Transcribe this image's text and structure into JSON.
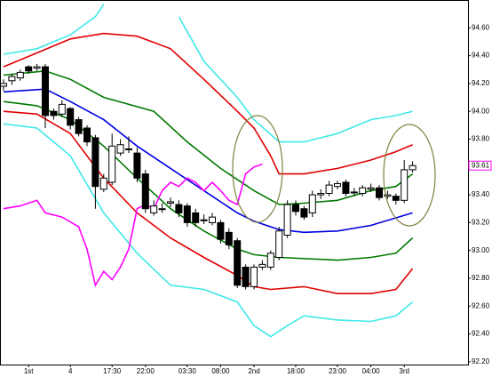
{
  "chart_data": {
    "type": "candlestick",
    "categories": [
      null,
      null,
      null,
      "1st",
      null,
      null,
      null,
      null,
      "4",
      null,
      null,
      null,
      null,
      "17:30",
      null,
      null,
      null,
      "22:00",
      null,
      null,
      null,
      null,
      "03:30",
      null,
      null,
      null,
      "08:00",
      null,
      null,
      null,
      "2nd",
      null,
      null,
      null,
      null,
      "18:00",
      null,
      null,
      null,
      null,
      "23:00",
      null,
      null,
      null,
      "04:00",
      null,
      null,
      null,
      "3rd",
      null
    ],
    "open": [
      94.18,
      94.22,
      94.24,
      94.32,
      94.31,
      94.32,
      94.0,
      93.98,
      94.02,
      93.94,
      93.88,
      93.81,
      93.44,
      93.49,
      93.7,
      93.73,
      93.7,
      93.55,
      93.27,
      93.3,
      93.34,
      93.33,
      93.32,
      93.27,
      93.22,
      93.2,
      93.2,
      93.13,
      93.07,
      92.88,
      92.74,
      92.88,
      92.88,
      92.95,
      93.11,
      93.33,
      93.3,
      93.27,
      93.4,
      93.41,
      93.46,
      93.49,
      93.42,
      93.41,
      93.44,
      93.45,
      93.39,
      93.39,
      93.36,
      93.58
    ],
    "high": [
      94.23,
      94.27,
      94.3,
      94.33,
      94.34,
      94.34,
      94.02,
      94.08,
      94.03,
      93.96,
      93.9,
      93.83,
      93.55,
      93.84,
      93.8,
      93.82,
      93.74,
      93.58,
      93.36,
      93.34,
      93.38,
      93.36,
      93.34,
      93.3,
      93.26,
      93.27,
      93.22,
      93.16,
      93.09,
      92.9,
      92.9,
      92.93,
      93.0,
      93.17,
      93.36,
      93.36,
      93.32,
      93.43,
      93.44,
      93.5,
      93.5,
      93.51,
      93.45,
      93.47,
      93.48,
      93.47,
      93.43,
      93.41,
      93.65,
      93.64
    ],
    "low": [
      94.15,
      94.19,
      94.22,
      94.27,
      94.29,
      93.88,
      93.94,
      93.96,
      93.87,
      93.82,
      93.75,
      93.3,
      93.42,
      93.47,
      93.68,
      93.7,
      93.49,
      93.27,
      93.25,
      93.27,
      93.31,
      93.24,
      93.17,
      93.17,
      93.19,
      93.18,
      93.05,
      93.01,
      92.73,
      92.72,
      92.72,
      92.86,
      92.86,
      92.93,
      93.09,
      93.25,
      93.22,
      93.24,
      93.37,
      93.39,
      93.44,
      93.39,
      93.39,
      93.39,
      93.42,
      93.36,
      93.37,
      93.33,
      93.34,
      93.56
    ],
    "close": [
      94.2,
      94.25,
      94.28,
      94.29,
      94.32,
      93.97,
      93.97,
      94.05,
      93.9,
      93.84,
      93.78,
      93.46,
      93.52,
      93.75,
      93.76,
      93.73,
      93.52,
      93.3,
      93.32,
      93.3,
      93.35,
      93.27,
      93.2,
      93.2,
      93.22,
      93.24,
      93.08,
      93.04,
      92.75,
      92.74,
      92.88,
      92.9,
      92.98,
      93.14,
      93.33,
      93.28,
      93.24,
      93.4,
      93.41,
      93.47,
      93.48,
      93.41,
      93.42,
      93.45,
      93.45,
      93.38,
      93.4,
      93.36,
      93.58,
      93.61
    ],
    "lines": [
      {
        "color": "#40e8e8",
        "x": [
          0,
          4,
          8,
          11,
          12,
          13,
          21,
          24,
          28,
          30,
          33,
          36,
          40,
          44,
          47,
          49
        ],
        "values": [
          94.41,
          94.45,
          94.55,
          94.68,
          94.77,
          null,
          94.68,
          94.36,
          94.1,
          93.94,
          93.78,
          93.78,
          93.84,
          93.94,
          93.97,
          94.0
        ]
      },
      {
        "color": "#e00000",
        "x": [
          0,
          4,
          8,
          12,
          16,
          20,
          24,
          28,
          30,
          32,
          33,
          36,
          40,
          44,
          47,
          49
        ],
        "values": [
          94.32,
          94.42,
          94.52,
          94.56,
          94.54,
          94.45,
          94.23,
          94.0,
          93.88,
          93.68,
          93.55,
          93.55,
          93.59,
          93.65,
          93.71,
          93.76
        ]
      },
      {
        "color": "#007a00",
        "x": [
          0,
          5,
          8,
          12,
          18,
          22,
          26,
          30,
          33,
          36,
          40,
          44,
          47,
          49
        ],
        "values": [
          94.26,
          94.29,
          94.23,
          94.1,
          94.0,
          93.78,
          93.59,
          93.43,
          93.33,
          93.34,
          93.36,
          93.43,
          93.46,
          93.55
        ]
      },
      {
        "color": "#0000e0",
        "x": [
          0,
          5,
          8,
          12,
          16,
          20,
          24,
          28,
          30,
          33,
          36,
          40,
          44,
          49
        ],
        "values": [
          94.14,
          94.16,
          94.07,
          93.94,
          93.75,
          93.59,
          93.43,
          93.27,
          93.21,
          93.15,
          93.13,
          93.14,
          93.18,
          93.27
        ]
      },
      {
        "color": "#007a00",
        "x": [
          0,
          4,
          8,
          12,
          16,
          20,
          24,
          28,
          30,
          33,
          40,
          44,
          47,
          49
        ],
        "values": [
          94.07,
          94.04,
          93.94,
          93.75,
          93.52,
          93.3,
          93.14,
          93.01,
          92.97,
          92.95,
          92.93,
          92.95,
          92.98,
          93.09
        ]
      },
      {
        "color": "#e00000",
        "x": [
          0,
          4,
          8,
          12,
          16,
          20,
          24,
          28,
          30,
          32,
          36,
          40,
          44,
          47,
          49
        ],
        "values": [
          94.0,
          93.98,
          93.84,
          93.52,
          93.27,
          93.09,
          92.95,
          92.82,
          92.74,
          92.72,
          92.74,
          92.69,
          92.69,
          92.72,
          92.87
        ]
      },
      {
        "color": "#40e8e8",
        "x": [
          0,
          4,
          8,
          12,
          16,
          20,
          24,
          28,
          30,
          32,
          34,
          36,
          40,
          44,
          47,
          49
        ],
        "values": [
          93.91,
          93.88,
          93.68,
          93.27,
          92.98,
          92.75,
          92.72,
          92.63,
          92.46,
          92.38,
          92.46,
          92.53,
          92.5,
          92.49,
          92.53,
          92.63
        ]
      },
      {
        "color": "#ff00ff",
        "x": [
          0,
          2,
          4,
          5,
          7,
          9,
          10,
          11,
          12,
          13,
          14,
          15,
          16,
          17,
          18,
          19,
          20,
          21,
          22,
          23,
          24,
          25,
          26,
          27,
          28,
          29,
          30,
          31
        ],
        "values": [
          93.3,
          93.32,
          93.36,
          93.27,
          93.24,
          93.17,
          93.01,
          92.75,
          92.85,
          92.79,
          92.88,
          93.01,
          93.3,
          93.33,
          93.3,
          93.43,
          93.49,
          93.46,
          93.52,
          93.49,
          93.43,
          93.49,
          93.43,
          93.36,
          93.33,
          93.55,
          93.6,
          93.62
        ]
      }
    ],
    "ylim": [
      92.18,
      94.8
    ],
    "yticks": [
      {
        "value": 94.6,
        "label": "94.60"
      },
      {
        "value": 94.4,
        "label": "94.40"
      },
      {
        "value": 94.2,
        "label": "94.20"
      },
      {
        "value": 94.0,
        "label": "94.00"
      },
      {
        "value": 93.8,
        "label": "93.80"
      },
      {
        "value": 93.4,
        "label": "93.40"
      },
      {
        "value": 93.2,
        "label": "93.20"
      },
      {
        "value": 93.0,
        "label": "93.00"
      },
      {
        "value": 92.8,
        "label": "92.80"
      },
      {
        "value": 92.6,
        "label": "92.60"
      },
      {
        "value": 92.4,
        "label": "92.40"
      },
      {
        "value": 92.2,
        "label": "92.20"
      }
    ],
    "last_price": {
      "value": 93.61,
      "label": "93.61",
      "color": "#ff00ff"
    }
  }
}
